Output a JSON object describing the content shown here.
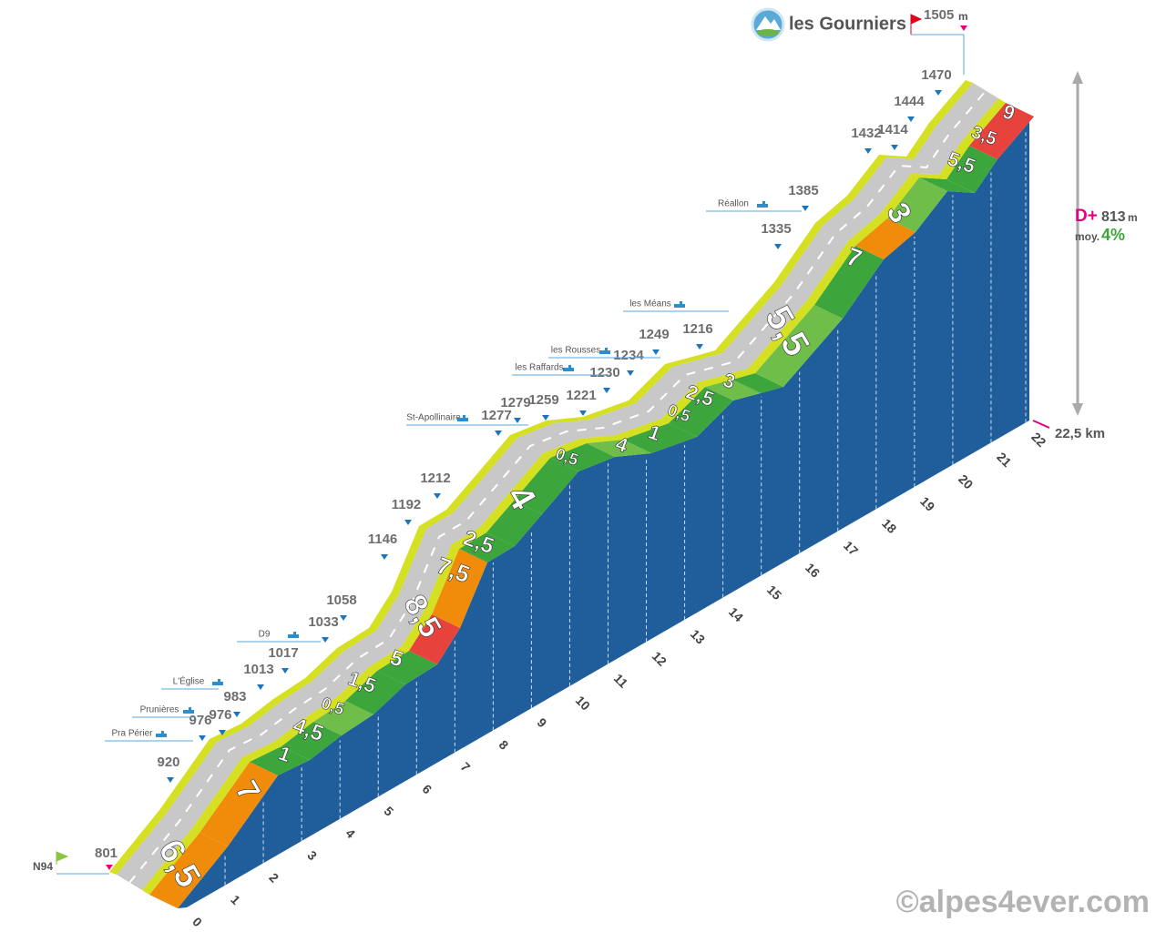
{
  "chart_data": {
    "type": "elevation-profile",
    "title": "les Gourniers",
    "summit_altitude": 1505,
    "altitude_unit": "m",
    "start_road": "N94",
    "start_altitude": 801,
    "altitudes": [
      920,
      976,
      976,
      983,
      1013,
      1017,
      1033,
      1058,
      1146,
      1192,
      1212,
      1277,
      1279,
      1259,
      1221,
      1230,
      1234,
      1249,
      1216,
      1335,
      1385,
      1432,
      1414,
      1444,
      1470
    ],
    "places": [
      "Pra Périer",
      "Prunières",
      "L'Église",
      "D9",
      "St-Apollinaire",
      "les Raffards",
      "les Rousses",
      "les Méans",
      "Réallon"
    ],
    "gradients": [
      "6,5",
      "7",
      "1",
      "4,5",
      "0,5",
      "1,5",
      "5",
      "8,5",
      "7,5",
      "2,5",
      "4",
      "0,5",
      "4",
      "1",
      "0,5",
      "2,5",
      "3",
      "5,5",
      "7",
      "3",
      "5,5",
      "3,5",
      "9"
    ],
    "km_ticks": [
      0,
      1,
      2,
      3,
      4,
      5,
      6,
      7,
      8,
      9,
      10,
      11,
      12,
      13,
      14,
      15,
      16,
      17,
      18,
      19,
      20,
      21,
      22
    ],
    "distance": "22,5 km",
    "gain_label": "D+",
    "gain": 813,
    "gain_unit": "m",
    "average_label": "moy.",
    "average_gradient": "4%",
    "copyright": "©alpes4ever.com"
  }
}
